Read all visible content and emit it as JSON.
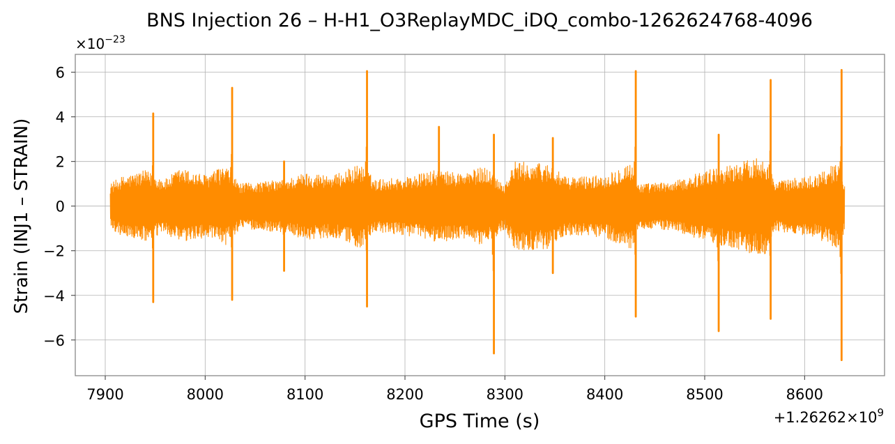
{
  "chart_data": {
    "type": "line",
    "title": "BNS Injection 26 – H-H1_O3ReplayMDC_iDQ_combo-1262624768-4096",
    "xlabel": "GPS Time (s)",
    "ylabel": "Strain (INJ1 – STRAIN)",
    "x_offset_text": "+1.26262×10",
    "x_offset_exponent": "9",
    "y_multiplier_text": "×10",
    "y_multiplier_exponent": "−23",
    "xlim": [
      7870,
      8680
    ],
    "ylim": [
      -7.6,
      6.8
    ],
    "x_ticks": [
      7900,
      8000,
      8100,
      8200,
      8300,
      8400,
      8500,
      8600
    ],
    "x_tick_labels": [
      "7900",
      "8000",
      "8100",
      "8200",
      "8300",
      "8400",
      "8500",
      "8600"
    ],
    "y_ticks": [
      -6,
      -4,
      -2,
      0,
      2,
      4,
      6
    ],
    "y_tick_labels": [
      "−6",
      "−4",
      "−2",
      "0",
      "2",
      "4",
      "6"
    ],
    "grid": true,
    "series": [
      {
        "color": "#ff8c00",
        "x_range": [
          7905,
          8640
        ],
        "noise_envelope": [
          {
            "x": 7905,
            "amp": 1.0
          },
          {
            "x": 7915,
            "amp": 1.3
          },
          {
            "x": 7940,
            "amp": 1.6
          },
          {
            "x": 7960,
            "amp": 1.2
          },
          {
            "x": 7975,
            "amp": 1.7
          },
          {
            "x": 8000,
            "amp": 1.4
          },
          {
            "x": 8020,
            "amp": 1.8
          },
          {
            "x": 8035,
            "amp": 1.0
          },
          {
            "x": 8080,
            "amp": 1.2
          },
          {
            "x": 8100,
            "amp": 1.5
          },
          {
            "x": 8130,
            "amp": 1.4
          },
          {
            "x": 8155,
            "amp": 1.9
          },
          {
            "x": 8170,
            "amp": 1.2
          },
          {
            "x": 8200,
            "amp": 1.3
          },
          {
            "x": 8230,
            "amp": 1.6
          },
          {
            "x": 8260,
            "amp": 1.5
          },
          {
            "x": 8280,
            "amp": 1.8
          },
          {
            "x": 8300,
            "amp": 1.0
          },
          {
            "x": 8310,
            "amp": 2.0
          },
          {
            "x": 8345,
            "amp": 1.9
          },
          {
            "x": 8360,
            "amp": 1.3
          },
          {
            "x": 8400,
            "amp": 1.4
          },
          {
            "x": 8425,
            "amp": 2.0
          },
          {
            "x": 8435,
            "amp": 1.0
          },
          {
            "x": 8470,
            "amp": 1.1
          },
          {
            "x": 8500,
            "amp": 1.6
          },
          {
            "x": 8530,
            "amp": 1.9
          },
          {
            "x": 8560,
            "amp": 2.3
          },
          {
            "x": 8570,
            "amp": 1.1
          },
          {
            "x": 8610,
            "amp": 1.4
          },
          {
            "x": 8635,
            "amp": 2.0
          },
          {
            "x": 8640,
            "amp": 1.0
          }
        ],
        "spikes": [
          {
            "x": 7948,
            "max": 4.15,
            "min": -4.3
          },
          {
            "x": 8027,
            "max": 5.3,
            "min": -4.2
          },
          {
            "x": 8079,
            "max": 2.0,
            "min": -2.9
          },
          {
            "x": 8162,
            "max": 6.05,
            "min": -4.5
          },
          {
            "x": 8234,
            "max": 3.55,
            "min": -1.4
          },
          {
            "x": 8289,
            "max": 3.2,
            "min": -6.6
          },
          {
            "x": 8348,
            "max": 3.05,
            "min": -3.0
          },
          {
            "x": 8431,
            "max": 6.05,
            "min": -4.95
          },
          {
            "x": 8514,
            "max": 3.2,
            "min": -5.6
          },
          {
            "x": 8566,
            "max": 5.65,
            "min": -5.05
          },
          {
            "x": 8637,
            "max": 6.1,
            "min": -6.9
          }
        ]
      }
    ]
  }
}
